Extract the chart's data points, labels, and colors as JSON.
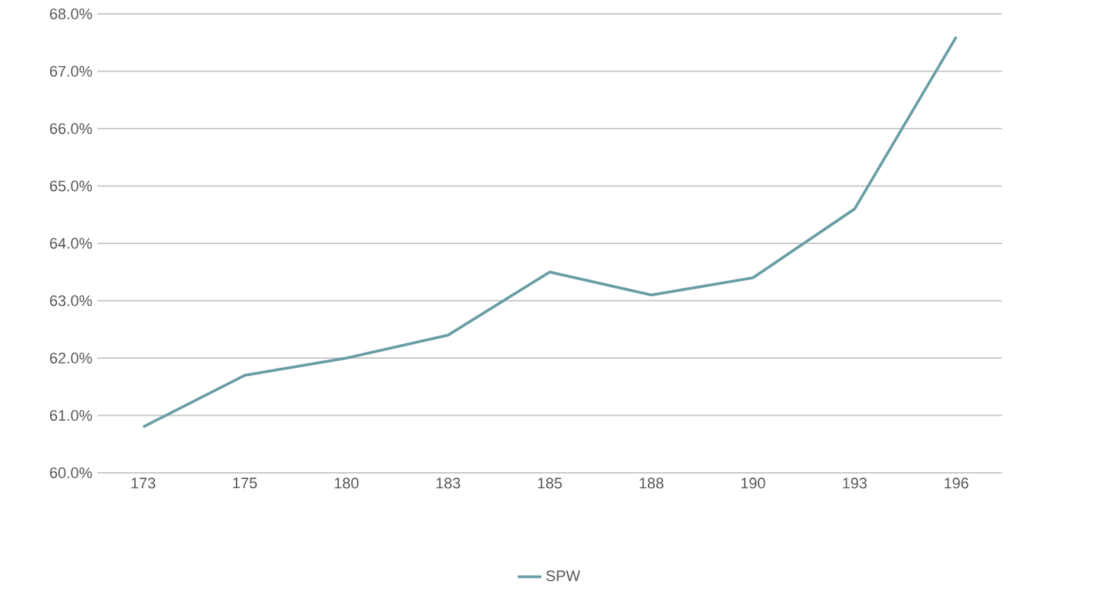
{
  "chart_data": {
    "type": "line",
    "categories": [
      "173",
      "175",
      "180",
      "183",
      "185",
      "188",
      "190",
      "193",
      "196"
    ],
    "series": [
      {
        "name": "SPW",
        "color": "#6a9ea6",
        "values": [
          60.8,
          61.7,
          62.0,
          62.4,
          63.5,
          63.1,
          63.4,
          64.6,
          67.6
        ]
      }
    ],
    "ylim": [
      60,
      68
    ],
    "yticks": [
      {
        "value": 60,
        "label": "60.0%"
      },
      {
        "value": 61,
        "label": "61.0%"
      },
      {
        "value": 62,
        "label": "62.0%"
      },
      {
        "value": 63,
        "label": "63.0%"
      },
      {
        "value": 64,
        "label": "64.0%"
      },
      {
        "value": 65,
        "label": "65.0%"
      },
      {
        "value": 66,
        "label": "66.0%"
      },
      {
        "value": 67,
        "label": "67.0%"
      },
      {
        "value": 68,
        "label": "68.0%"
      }
    ],
    "grid": "y",
    "legend": "bottom",
    "marker": "none",
    "line_style": "solid"
  }
}
